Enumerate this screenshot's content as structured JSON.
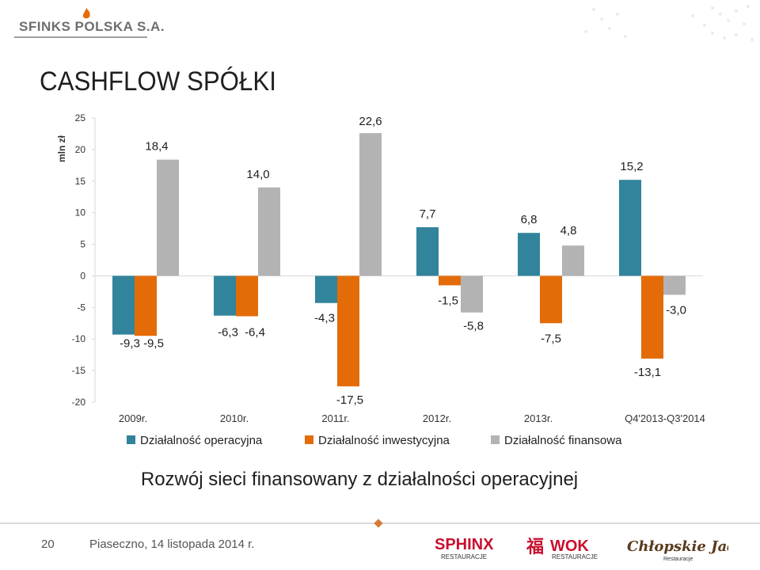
{
  "header": {
    "company": "SFINKS POLSKA S.A."
  },
  "page_title": "CASHFLOW SPÓŁKI",
  "chart_data": {
    "type": "bar",
    "ylabel": "mln zł",
    "ylim": [
      -20,
      25
    ],
    "yticks": [
      25,
      20,
      15,
      10,
      5,
      0,
      -5,
      -10,
      -15,
      -20
    ],
    "categories": [
      "2009r.",
      "2010r.",
      "2011r.",
      "2012r.",
      "2013r.",
      "Q4'2013-Q3'2014"
    ],
    "series": [
      {
        "name": "Działalność operacyjna",
        "color": "#31849b",
        "values": [
          -9.3,
          -6.3,
          -4.3,
          7.7,
          6.8,
          15.2
        ],
        "labels": [
          "-9,3",
          "-6,3",
          "-4,3",
          "7,7",
          "6,8",
          "15,2"
        ]
      },
      {
        "name": "Działalność inwestycyjna",
        "color": "#e36c09",
        "values": [
          -9.5,
          -6.4,
          -17.5,
          -1.5,
          -7.5,
          -13.1
        ],
        "labels": [
          "-9,5",
          "-6,4",
          "-17,5",
          "-1,5",
          "-7,5",
          "-13,1"
        ]
      },
      {
        "name": "Działalność finansowa",
        "color": "#b3b3b3",
        "values": [
          18.4,
          14.0,
          22.6,
          -5.8,
          4.8,
          -3.0
        ],
        "labels": [
          "18,4",
          "14,0",
          "22,6",
          "-5,8",
          "4,8",
          "-3,0"
        ]
      }
    ],
    "legend_position": "bottom",
    "grid": false
  },
  "subtitle": "Rozwój sieci finansowany z działalności operacyjnej",
  "footer": {
    "page_number": "20",
    "location_date": "Piaseczno, 14 listopada 2014 r."
  },
  "brands": [
    "SPHINX",
    "RESTAURACJE",
    "WOK",
    "RESTAURACJE",
    "Chłopskie Jadło",
    "Restauracje"
  ]
}
